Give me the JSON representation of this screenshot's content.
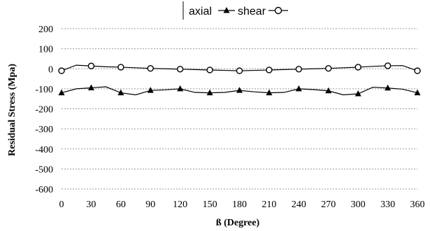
{
  "chart_data": {
    "type": "line",
    "xlabel": "ß (Degree)",
    "ylabel": "Residual Stress (Mpa)",
    "xlim": [
      0,
      360
    ],
    "ylim": [
      -600,
      200
    ],
    "x_ticks": [
      0,
      30,
      60,
      90,
      120,
      150,
      180,
      210,
      240,
      270,
      300,
      330,
      360
    ],
    "y_ticks": [
      200,
      100,
      0,
      -100,
      -200,
      -300,
      -400,
      -500,
      -600
    ],
    "grid": "horizontal-dashed",
    "legend_position": "top",
    "series": [
      {
        "name": "axial",
        "marker": "triangle-filled",
        "color": "#000000",
        "x": [
          0,
          15,
          30,
          45,
          60,
          75,
          90,
          105,
          120,
          135,
          150,
          165,
          180,
          195,
          210,
          225,
          240,
          255,
          270,
          285,
          300,
          315,
          330,
          345,
          360
        ],
        "y": [
          -120,
          -100,
          -95,
          -90,
          -120,
          -130,
          -108,
          -105,
          -100,
          -118,
          -120,
          -118,
          -108,
          -115,
          -120,
          -118,
          -100,
          -104,
          -110,
          -130,
          -125,
          -92,
          -96,
          -102,
          -120
        ],
        "marker_x": [
          0,
          30,
          60,
          90,
          120,
          150,
          180,
          210,
          240,
          270,
          300,
          330,
          360
        ]
      },
      {
        "name": "shear",
        "marker": "circle-open",
        "color": "#000000",
        "x": [
          0,
          15,
          30,
          45,
          60,
          75,
          90,
          105,
          120,
          135,
          150,
          165,
          180,
          195,
          210,
          225,
          240,
          255,
          270,
          285,
          300,
          315,
          330,
          345,
          360
        ],
        "y": [
          -10,
          18,
          14,
          10,
          8,
          5,
          2,
          0,
          -2,
          -4,
          -6,
          -8,
          -10,
          -8,
          -6,
          -4,
          -2,
          0,
          2,
          5,
          8,
          12,
          15,
          16,
          -10
        ],
        "marker_x": [
          0,
          30,
          60,
          90,
          120,
          150,
          180,
          210,
          240,
          270,
          300,
          330,
          360
        ]
      }
    ]
  },
  "colors": {
    "grid": "#9a9a9a",
    "line": "#000000",
    "background": "#ffffff"
  }
}
